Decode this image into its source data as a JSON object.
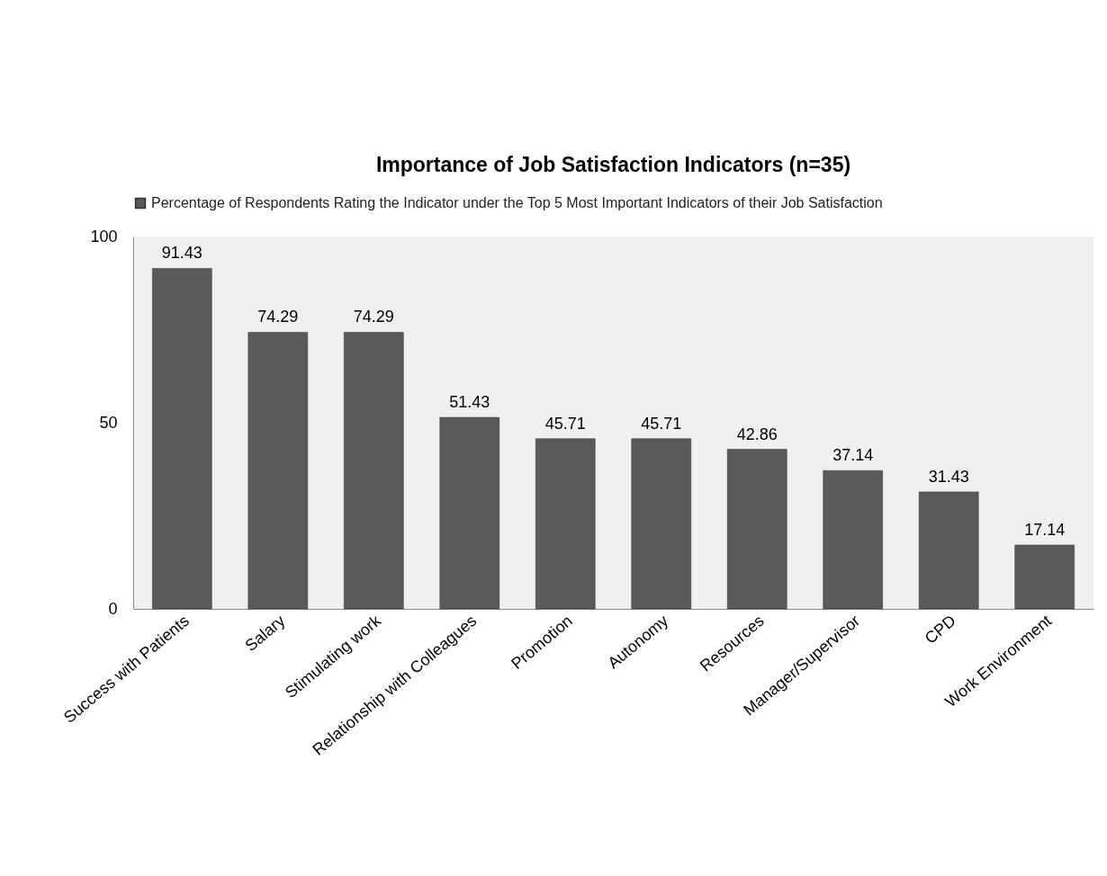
{
  "chart_data": {
    "type": "bar",
    "title": "Importance of Job Satisfaction Indicators (n=35)",
    "categories": [
      "Success with Patients",
      "Salary",
      "Stimulating work",
      "Relationship with Colleagues",
      "Promotion",
      "Autonomy",
      "Resources",
      "Manager/Supervisor",
      "CPD",
      "Work Environment"
    ],
    "series": [
      {
        "name": "Percentage of Respondents Rating the Indicator under the Top 5 Most Important Indicators of their Job Satisfaction",
        "color": "#5a5a5a",
        "values": [
          91.43,
          74.29,
          74.29,
          51.43,
          45.71,
          45.71,
          42.86,
          37.14,
          31.43,
          17.14
        ]
      }
    ],
    "ylim": [
      0,
      100
    ],
    "yticks": [
      0,
      50,
      100
    ],
    "grid": false,
    "legend": "top",
    "data_labels": true
  }
}
